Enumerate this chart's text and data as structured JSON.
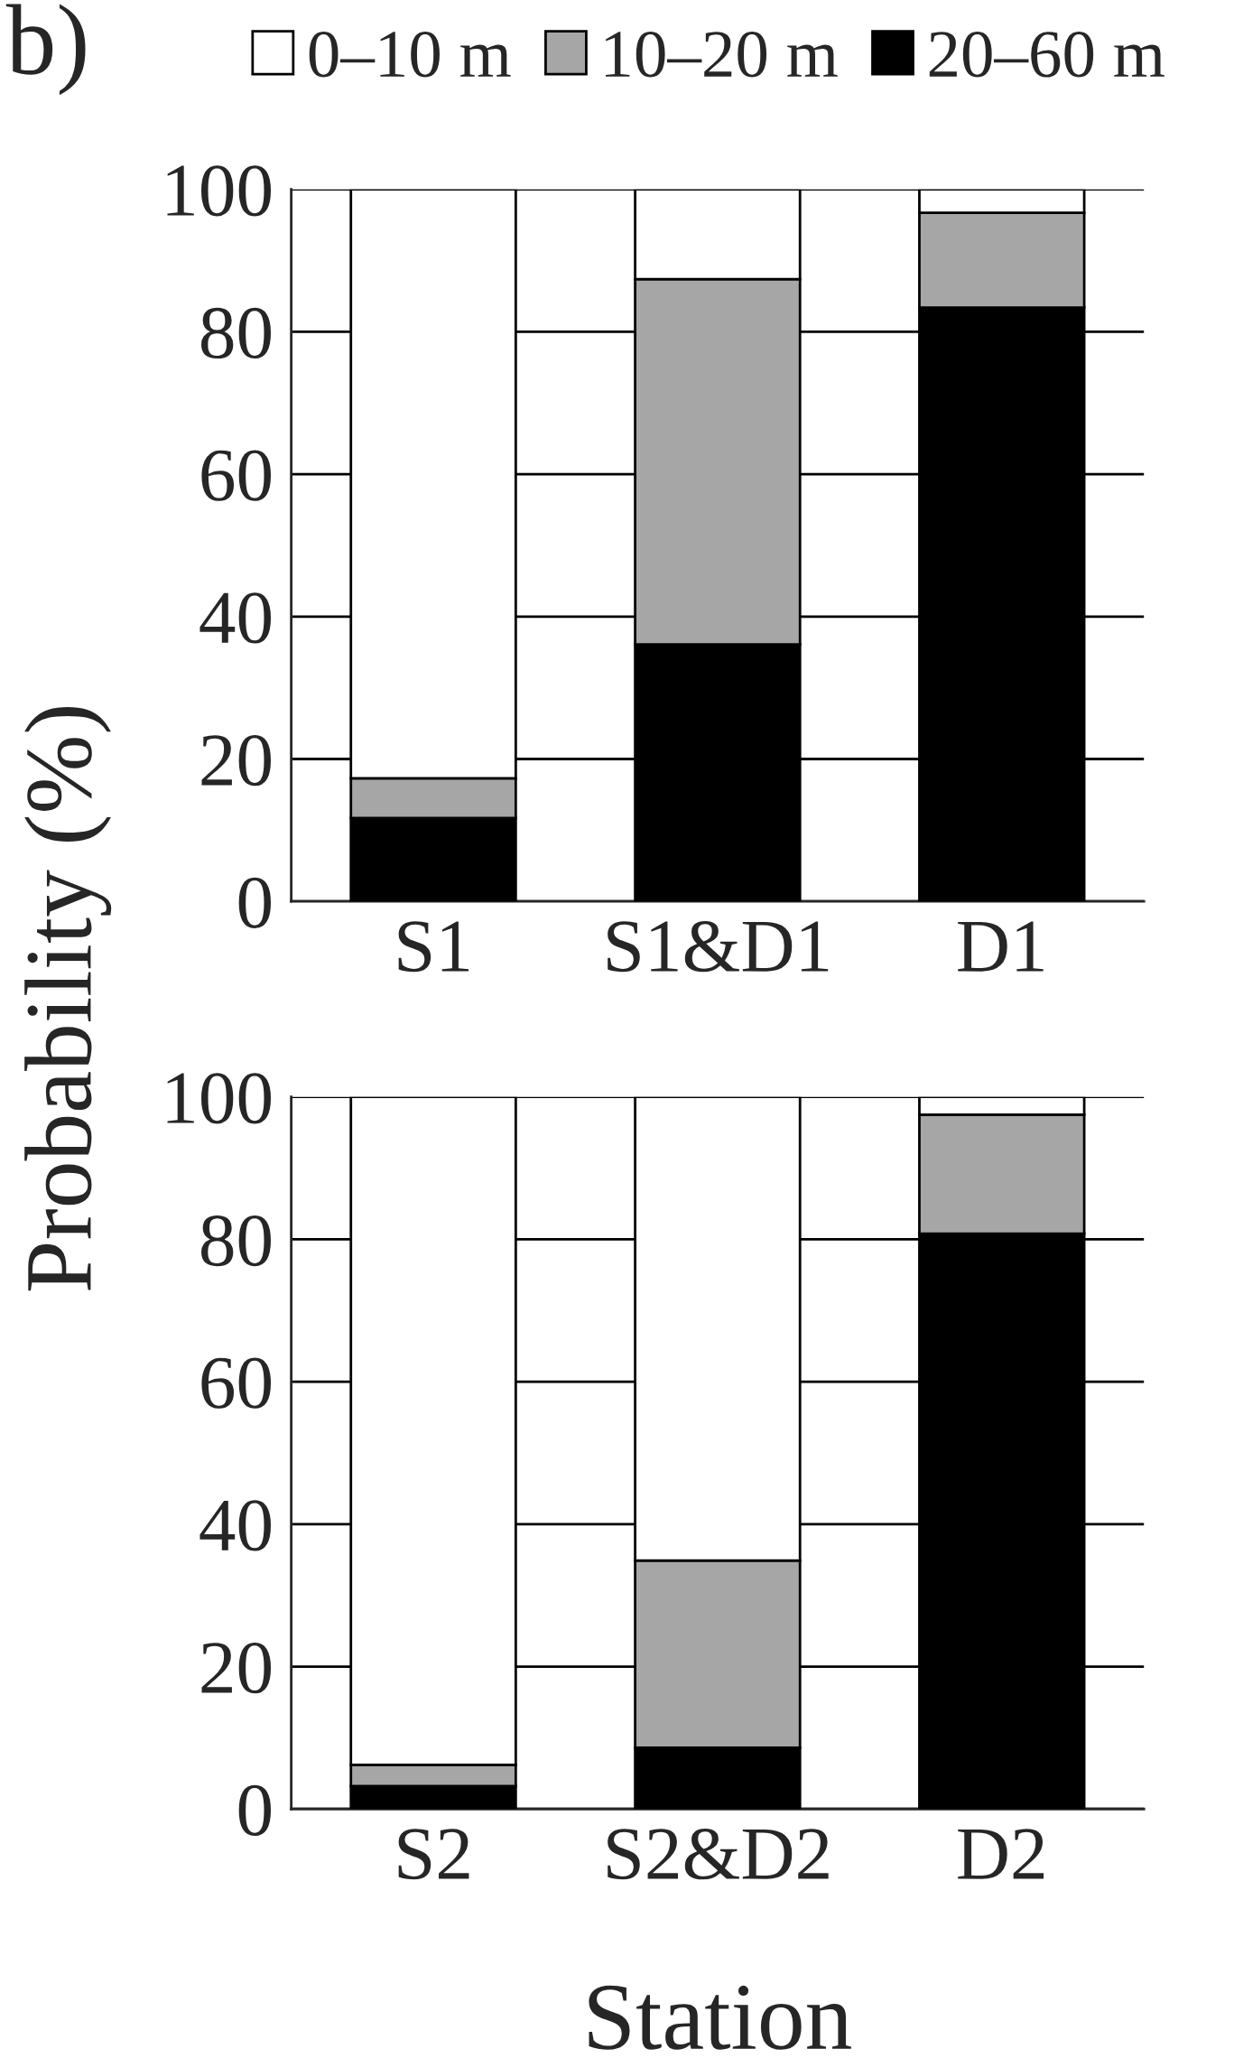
{
  "chart_data": [
    {
      "type": "bar",
      "title": "b)",
      "ylabel": "Probability (%)",
      "categories": [
        "S1",
        "S1&D1",
        "D1"
      ],
      "stacked": true,
      "legend": "top",
      "grid": "y",
      "ylim": [
        0,
        100
      ],
      "yticks": [
        0,
        20,
        40,
        60,
        80,
        100
      ],
      "series": [
        {
          "name": "20–60 m",
          "color": "#000000",
          "values": [
            11.7,
            36.1,
            83.4
          ]
        },
        {
          "name": "10–20 m",
          "color": "#a6a6a6",
          "values": [
            5.6,
            51.3,
            13.3
          ]
        },
        {
          "name": "0–10 m",
          "color": "#ffffff",
          "values": [
            82.7,
            12.6,
            3.3
          ]
        }
      ]
    },
    {
      "type": "bar",
      "xlabel": "Station",
      "categories": [
        "S2",
        "S2&D2",
        "D2"
      ],
      "stacked": true,
      "grid": "y",
      "ylim": [
        0,
        100
      ],
      "yticks": [
        0,
        20,
        40,
        60,
        80,
        100
      ],
      "series": [
        {
          "color": "#000000",
          "values": [
            3.2,
            8.6,
            80.8
          ]
        },
        {
          "color": "#a6a6a6",
          "values": [
            3.0,
            26.3,
            16.7
          ]
        },
        {
          "color": "#ffffff",
          "values": [
            93.8,
            65.1,
            2.5
          ]
        }
      ]
    }
  ]
}
